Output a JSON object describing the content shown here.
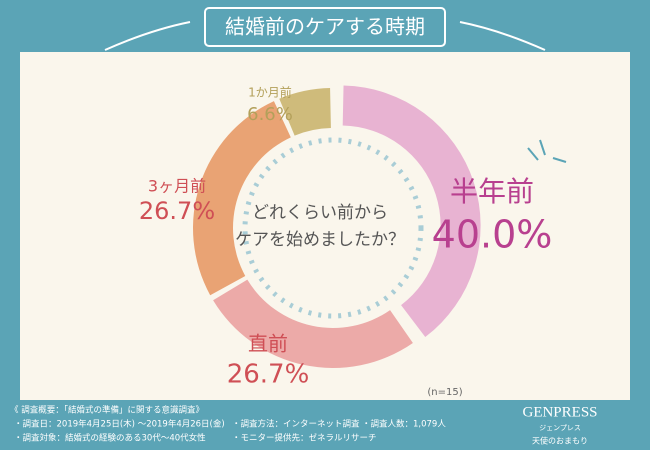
{
  "chart_data": {
    "type": "donut",
    "title": "結婚前のケアする時期",
    "categories": [
      "半年前",
      "直前",
      "3ヶ月前",
      "1か月前"
    ],
    "values": [
      40.0,
      26.7,
      26.7,
      6.6
    ],
    "value_labels": [
      "40.0%",
      "26.7%",
      "26.7%",
      "6.6%"
    ],
    "colors": [
      "#e8b3d2",
      "#ecaaa8",
      "#e9a374",
      "#cfbb7b"
    ],
    "center_text": [
      "どれくらい前から",
      "ケアを始めましたか？"
    ],
    "note": "(n=15)"
  },
  "footer": {
    "lines": [
      "《 調査概要：「結婚式の準備」に関する意識調査》",
      "・調査日：2019年4月25日(木) 〜2019年4月26日(金)",
      "・調査方法：インターネット調査",
      "・調査人数：1,079人",
      "・調査対象：結婚式の経験のある30代〜40代女性",
      "・モニター提供先：ゼネラルリサーチ"
    ]
  },
  "logo": {
    "name": "GENPRESS",
    "kana": "ジェンプレス",
    "tagline": "天使のおまもり"
  }
}
